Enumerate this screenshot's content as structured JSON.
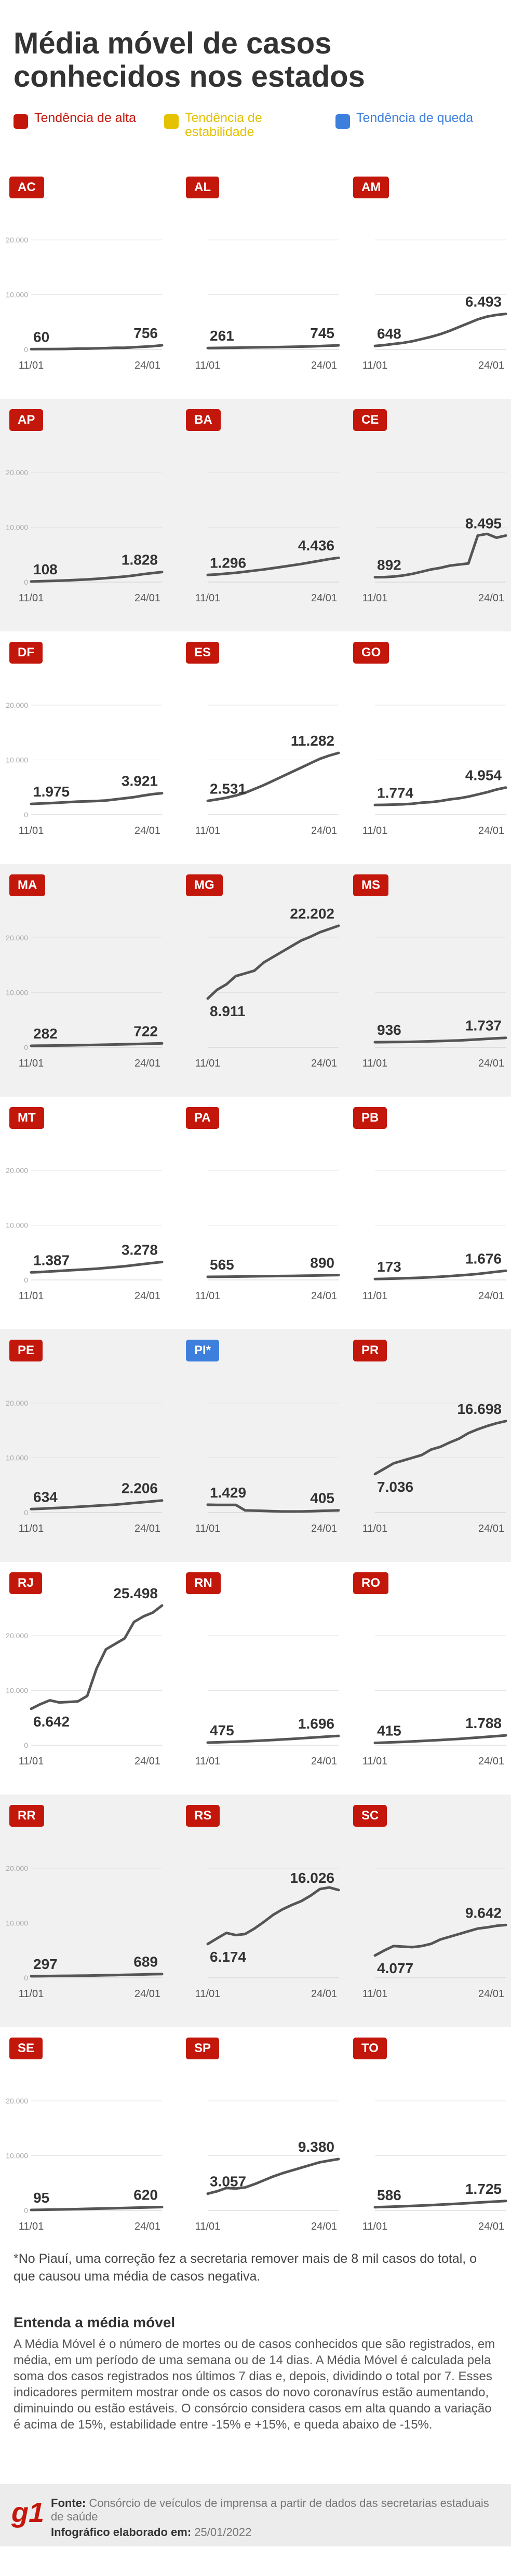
{
  "title": "Média móvel de casos conhecidos nos estados",
  "legend": [
    {
      "label": "Tendência de alta",
      "color": "#c4170c"
    },
    {
      "label": "Tendência de estabilidade",
      "color": "#e5c200"
    },
    {
      "label": "Tendência de queda",
      "color": "#3d7fdd"
    }
  ],
  "colors": {
    "alta": "#c4170c",
    "estabilidade": "#e5c200",
    "queda": "#3d7fdd",
    "line": "#555555"
  },
  "chart_data": {
    "type": "line",
    "x_labels": [
      "11/01",
      "24/01"
    ],
    "y_ticks": [
      0,
      10000,
      20000
    ],
    "y_tick_labels": [
      "0",
      "10.000",
      "20.000"
    ],
    "ylim": [
      0,
      20000
    ],
    "panels": [
      {
        "state": "AC",
        "trend": "alta",
        "start_label": "60",
        "end_label": "756",
        "values": [
          60,
          70,
          80,
          90,
          100,
          150,
          150,
          200,
          250,
          300,
          300,
          400,
          500,
          600,
          756
        ]
      },
      {
        "state": "AL",
        "trend": "alta",
        "start_label": "261",
        "end_label": "745",
        "values": [
          261,
          280,
          300,
          320,
          350,
          380,
          400,
          420,
          450,
          480,
          520,
          560,
          620,
          680,
          745
        ]
      },
      {
        "state": "AM",
        "trend": "alta",
        "start_label": "648",
        "end_label": "6.493",
        "values": [
          648,
          800,
          1000,
          1200,
          1500,
          1900,
          2300,
          2800,
          3400,
          4100,
          4800,
          5500,
          6000,
          6300,
          6493
        ]
      },
      {
        "state": "AP",
        "trend": "alta",
        "start_label": "108",
        "end_label": "1.828",
        "values": [
          108,
          150,
          200,
          260,
          320,
          400,
          480,
          600,
          720,
          860,
          1000,
          1200,
          1450,
          1650,
          1828
        ]
      },
      {
        "state": "BA",
        "trend": "alta",
        "start_label": "1.296",
        "end_label": "4.436",
        "values": [
          1296,
          1400,
          1550,
          1700,
          1900,
          2100,
          2300,
          2550,
          2800,
          3050,
          3300,
          3600,
          3900,
          4200,
          4436
        ]
      },
      {
        "state": "CE",
        "trend": "alta",
        "start_label": "892",
        "end_label": "8.495",
        "values": [
          892,
          900,
          1000,
          1200,
          1500,
          1900,
          2300,
          2600,
          3000,
          3200,
          3400,
          8500,
          8800,
          8100,
          8495
        ]
      },
      {
        "state": "DF",
        "trend": "alta",
        "start_label": "1.975",
        "end_label": "3.921",
        "values": [
          1975,
          2050,
          2100,
          2200,
          2300,
          2400,
          2450,
          2500,
          2600,
          2800,
          3000,
          3200,
          3500,
          3750,
          3921
        ]
      },
      {
        "state": "ES",
        "trend": "alta",
        "start_label": "2.531",
        "end_label": "11.282",
        "values": [
          2531,
          2800,
          3100,
          3500,
          4000,
          4700,
          5400,
          6200,
          7000,
          7800,
          8600,
          9400,
          10200,
          10800,
          11282
        ]
      },
      {
        "state": "GO",
        "trend": "alta",
        "start_label": "1.774",
        "end_label": "4.954",
        "values": [
          1774,
          1800,
          1850,
          1900,
          2000,
          2200,
          2300,
          2500,
          2800,
          3000,
          3300,
          3700,
          4100,
          4600,
          4954
        ]
      },
      {
        "state": "MA",
        "trend": "alta",
        "start_label": "282",
        "end_label": "722",
        "values": [
          282,
          300,
          320,
          340,
          360,
          390,
          420,
          450,
          480,
          520,
          560,
          600,
          640,
          690,
          722
        ]
      },
      {
        "state": "MG",
        "trend": "alta",
        "start_label": "8.911",
        "end_label": "22.202",
        "values": [
          8911,
          10500,
          11500,
          13000,
          13500,
          14000,
          15500,
          16500,
          17500,
          18500,
          19500,
          20200,
          21000,
          21600,
          22202
        ]
      },
      {
        "state": "MS",
        "trend": "alta",
        "start_label": "936",
        "end_label": "1.737",
        "values": [
          936,
          950,
          970,
          990,
          1000,
          1050,
          1100,
          1150,
          1200,
          1250,
          1350,
          1450,
          1550,
          1650,
          1737
        ]
      },
      {
        "state": "MT",
        "trend": "alta",
        "start_label": "1.387",
        "end_label": "3.278",
        "values": [
          1387,
          1450,
          1550,
          1650,
          1750,
          1850,
          1950,
          2050,
          2200,
          2350,
          2500,
          2700,
          2900,
          3100,
          3278
        ]
      },
      {
        "state": "PA",
        "trend": "alta",
        "start_label": "565",
        "end_label": "890",
        "values": [
          565,
          580,
          600,
          620,
          640,
          660,
          680,
          700,
          720,
          740,
          770,
          800,
          830,
          860,
          890
        ]
      },
      {
        "state": "PB",
        "trend": "alta",
        "start_label": "173",
        "end_label": "1.676",
        "values": [
          173,
          200,
          250,
          300,
          360,
          420,
          500,
          600,
          700,
          820,
          950,
          1100,
          1300,
          1500,
          1676
        ]
      },
      {
        "state": "PE",
        "trend": "alta",
        "start_label": "634",
        "end_label": "2.206",
        "values": [
          634,
          700,
          780,
          860,
          950,
          1050,
          1150,
          1250,
          1350,
          1450,
          1600,
          1750,
          1900,
          2050,
          2206
        ]
      },
      {
        "state": "PI*",
        "trend": "queda",
        "start_label": "1.429",
        "end_label": "405",
        "values": [
          1429,
          1400,
          1400,
          1400,
          400,
          350,
          300,
          250,
          200,
          200,
          200,
          250,
          300,
          350,
          405
        ]
      },
      {
        "state": "PR",
        "trend": "alta",
        "start_label": "7.036",
        "end_label": "16.698",
        "values": [
          7036,
          8000,
          9000,
          9500,
          10000,
          10500,
          11500,
          12000,
          12800,
          13500,
          14500,
          15200,
          15800,
          16300,
          16698
        ]
      },
      {
        "state": "RJ",
        "trend": "alta",
        "start_label": "6.642",
        "end_label": "25.498",
        "values": [
          6642,
          7500,
          8200,
          7800,
          7900,
          8000,
          9000,
          14000,
          17500,
          18500,
          19500,
          22500,
          23500,
          24200,
          25498
        ]
      },
      {
        "state": "RN",
        "trend": "alta",
        "start_label": "475",
        "end_label": "1.696",
        "values": [
          475,
          520,
          580,
          640,
          700,
          780,
          860,
          950,
          1050,
          1150,
          1250,
          1370,
          1480,
          1600,
          1696
        ]
      },
      {
        "state": "RO",
        "trend": "alta",
        "start_label": "415",
        "end_label": "1.788",
        "values": [
          415,
          470,
          540,
          610,
          690,
          770,
          860,
          950,
          1050,
          1150,
          1280,
          1400,
          1530,
          1660,
          1788
        ]
      },
      {
        "state": "RR",
        "trend": "alta",
        "start_label": "297",
        "end_label": "689",
        "values": [
          297,
          310,
          330,
          350,
          370,
          390,
          410,
          440,
          470,
          500,
          540,
          580,
          620,
          660,
          689
        ]
      },
      {
        "state": "RS",
        "trend": "alta",
        "start_label": "6.174",
        "end_label": "16.026",
        "values": [
          6174,
          7200,
          8200,
          7800,
          8000,
          9000,
          10200,
          11500,
          12500,
          13300,
          14000,
          15000,
          16200,
          16500,
          16026
        ]
      },
      {
        "state": "SC",
        "trend": "alta",
        "start_label": "4.077",
        "end_label": "9.642",
        "values": [
          4077,
          5000,
          5800,
          5700,
          5600,
          5800,
          6200,
          7000,
          7500,
          8000,
          8500,
          9000,
          9200,
          9500,
          9642
        ]
      },
      {
        "state": "SE",
        "trend": "alta",
        "start_label": "95",
        "end_label": "620",
        "values": [
          95,
          120,
          150,
          180,
          210,
          250,
          290,
          330,
          370,
          410,
          450,
          490,
          530,
          580,
          620
        ]
      },
      {
        "state": "SP",
        "trend": "alta",
        "start_label": "3.057",
        "end_label": "9.380",
        "values": [
          3057,
          3500,
          4100,
          4000,
          4200,
          4800,
          5500,
          6200,
          6800,
          7300,
          7800,
          8300,
          8800,
          9100,
          9380
        ]
      },
      {
        "state": "TO",
        "trend": "alta",
        "start_label": "586",
        "end_label": "1.725",
        "values": [
          586,
          640,
          700,
          760,
          830,
          900,
          980,
          1060,
          1150,
          1240,
          1340,
          1440,
          1540,
          1630,
          1725
        ]
      }
    ]
  },
  "note": "*No Piauí, uma correção fez a secretaria remover mais de 8 mil casos do total, o que causou uma média de casos negativa.",
  "explainer": {
    "title": "Entenda a média móvel",
    "text": "A Média Móvel é o número de mortes ou de casos conhecidos que são registrados, em média, em um período de uma semana ou de 14 dias. A Média Móvel é calculada pela soma dos casos registrados nos últimos 7 dias e, depois, dividindo o total por 7. Esses indicadores permitem mostrar onde os casos do novo coronavírus estão aumentando, diminuindo ou estão estáveis. O consórcio considera casos em alta quando a variação é acima de 15%, estabilidade entre -15% e +15%, e queda abaixo de -15%."
  },
  "footer": {
    "logo": "g1",
    "source_label": "Fonte:",
    "source_text": "Consórcio de veículos de imprensa a partir de dados das secretarias estaduais de saúde",
    "date_label": "Infográfico elaborado em:",
    "date_text": "25/01/2022"
  }
}
